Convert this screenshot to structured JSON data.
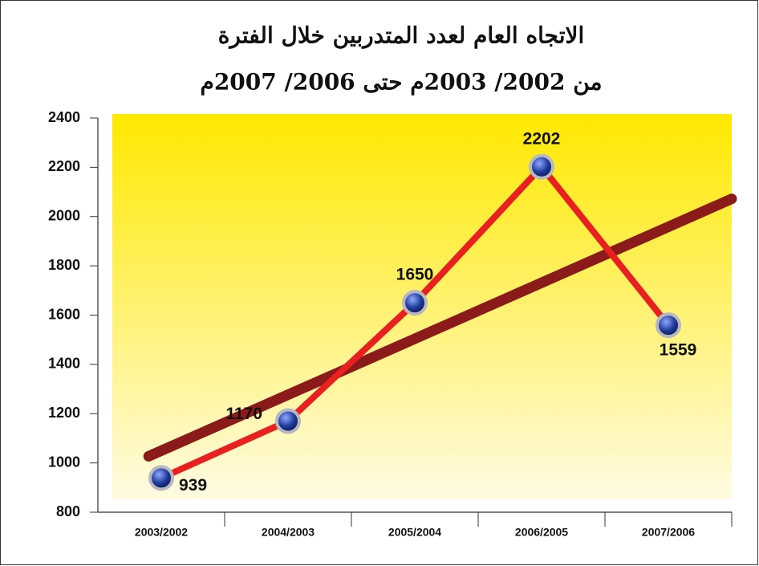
{
  "chart_data": {
    "type": "line",
    "title": "الاتجاه العام لعدد المتدربين خلال الفترة",
    "subtitle": "من 2002/ 2003م حتى 2006/ 2007م",
    "categories": [
      "2003/2002",
      "2004/2003",
      "2005/2004",
      "2006/2005",
      "2007/2006"
    ],
    "series": [
      {
        "color": "#e8201f",
        "values": [
          939,
          1170,
          1650,
          2202,
          1559
        ]
      }
    ],
    "trendline": true,
    "trendline_color": "#8b1a1a",
    "ylim": [
      800,
      2400
    ],
    "yticks": [
      800,
      1000,
      1200,
      1400,
      1600,
      1800,
      2000,
      2200,
      2400
    ]
  }
}
